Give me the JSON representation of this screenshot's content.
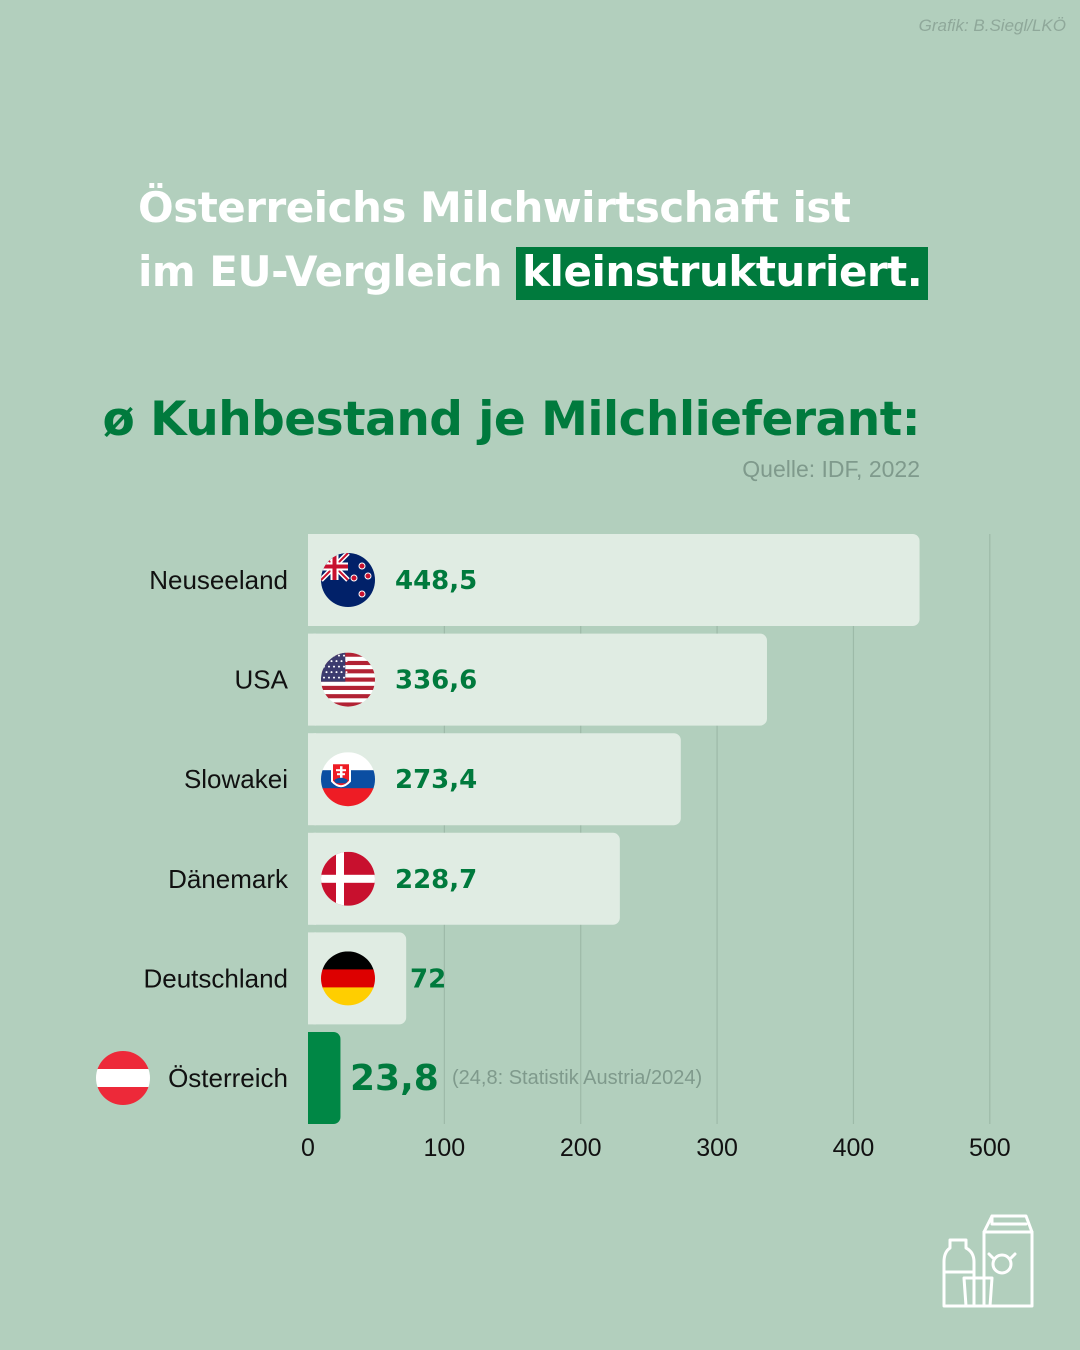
{
  "credit": "Grafik: B.Siegl/LKÖ",
  "headline": {
    "line1": "Österreichs Milchwirtschaft ist",
    "line2_prefix": "im EU-Vergleich ",
    "line2_highlight": "kleinstrukturiert."
  },
  "colors": {
    "background": "#b2cfbd",
    "accent": "#007a3d",
    "bar": "#e0ece3",
    "bar_highlight": "#008745"
  },
  "chart_data": {
    "type": "bar",
    "orientation": "horizontal",
    "title": "ø Kuhbestand je Milchlieferant:",
    "source": "Quelle: IDF, 2022",
    "categories": [
      "Neuseeland",
      "USA",
      "Slowakei",
      "Dänemark",
      "Deutschland",
      "Österreich"
    ],
    "values": [
      448.5,
      336.6,
      273.4,
      228.7,
      72,
      23.8
    ],
    "value_labels": [
      "448,5",
      "336,6",
      "273,4",
      "228,7",
      "72",
      "23,8"
    ],
    "flags": [
      "new-zealand-flag",
      "usa-flag",
      "slovakia-flag",
      "denmark-flag",
      "germany-flag",
      "austria-flag"
    ],
    "highlight": "Österreich",
    "annotation": "(24,8: Statistik Austria/2024)",
    "xticks": [
      0,
      100,
      200,
      300,
      400,
      500
    ],
    "xlim": [
      0,
      500
    ],
    "grid": true
  },
  "icons": {
    "corner": "milk-products-icon"
  }
}
